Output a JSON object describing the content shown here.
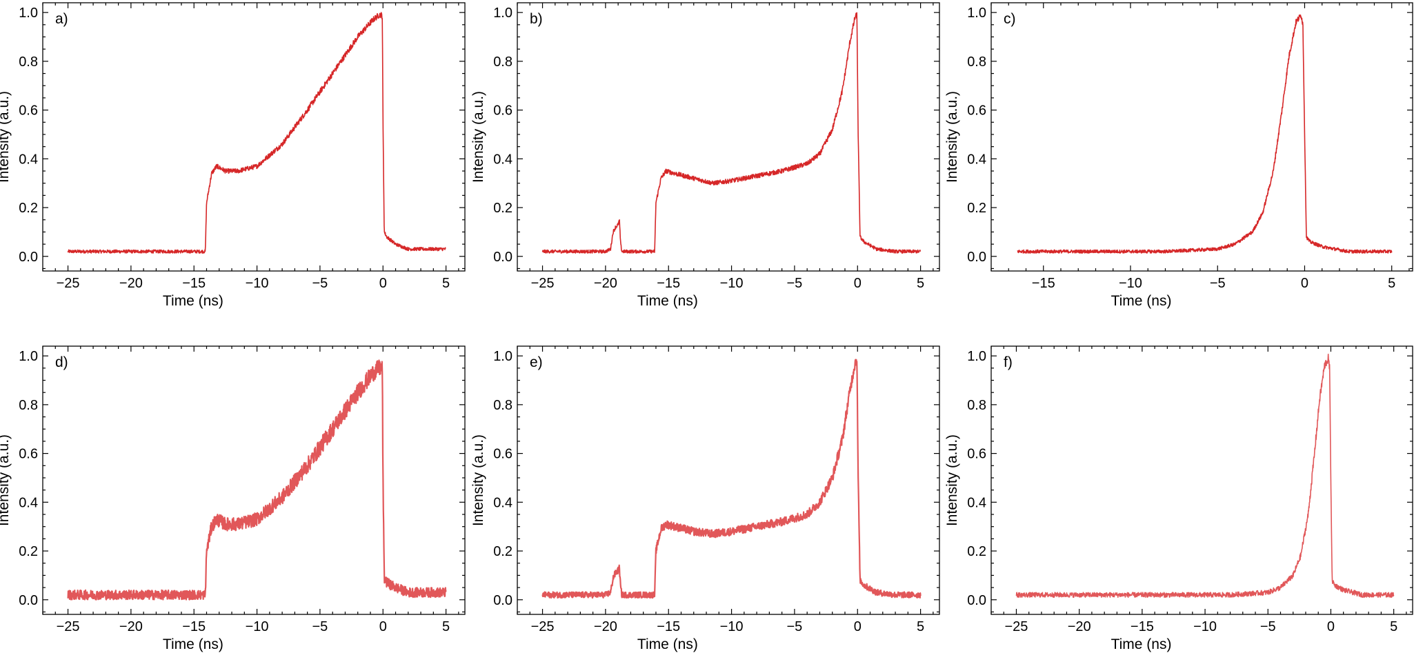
{
  "chart_data": [
    {
      "type": "line",
      "panel_label": "a)",
      "xlabel": "Time (ns)",
      "ylabel": "Intensity (a.u.)",
      "xlim": [
        -27,
        6.5
      ],
      "ylim": [
        -0.06,
        1.04
      ],
      "xticks": [
        -25,
        -20,
        -15,
        -10,
        -5,
        0,
        5
      ],
      "yticks": [
        0.0,
        0.2,
        0.4,
        0.6,
        0.8,
        1.0
      ],
      "xticklabels": [
        "−25",
        "−20",
        "−15",
        "−10",
        "−5",
        "0",
        "5"
      ],
      "yticklabels": [
        "0.0",
        "0.2",
        "0.4",
        "0.6",
        "0.8",
        "1.0"
      ],
      "grid": false,
      "color": "#d62728",
      "band": 0.012,
      "series": [
        {
          "x": [
            -25,
            -20,
            -15,
            -14.1,
            -14.0,
            -13.6,
            -13.2,
            -12.5,
            -11.5,
            -10.0,
            -8.0,
            -6.0,
            -4.0,
            -2.0,
            -0.8,
            -0.3,
            -0.1,
            -0.05,
            0.0,
            0.1,
            0.3,
            1.0,
            2.0,
            3.5,
            5.0
          ],
          "y": [
            0.02,
            0.02,
            0.02,
            0.02,
            0.22,
            0.34,
            0.37,
            0.35,
            0.35,
            0.37,
            0.46,
            0.6,
            0.75,
            0.9,
            0.97,
            0.99,
            0.99,
            0.98,
            0.55,
            0.1,
            0.08,
            0.05,
            0.03,
            0.03,
            0.03
          ]
        }
      ]
    },
    {
      "type": "line",
      "panel_label": "b)",
      "xlabel": "Time (ns)",
      "ylabel": "Intensity (a.u.)",
      "xlim": [
        -27,
        6.5
      ],
      "ylim": [
        -0.06,
        1.04
      ],
      "xticks": [
        -25,
        -20,
        -15,
        -10,
        -5,
        0,
        5
      ],
      "yticks": [
        0.0,
        0.2,
        0.4,
        0.6,
        0.8,
        1.0
      ],
      "xticklabels": [
        "−25",
        "−20",
        "−15",
        "−10",
        "−5",
        "0",
        "5"
      ],
      "yticklabels": [
        "0.0",
        "0.2",
        "0.4",
        "0.6",
        "0.8",
        "1.0"
      ],
      "grid": false,
      "color": "#d62728",
      "band": 0.012,
      "series": [
        {
          "x": [
            -25,
            -20,
            -19.6,
            -19.4,
            -19.2,
            -19.0,
            -18.9,
            -18.8,
            -18.7,
            -16.5,
            -16.1,
            -16.0,
            -15.6,
            -15.2,
            -14.5,
            -13.0,
            -11.5,
            -10.0,
            -8.0,
            -6.0,
            -4.0,
            -3.0,
            -2.0,
            -1.2,
            -0.6,
            -0.2,
            -0.05,
            0.05,
            0.2,
            0.5,
            1.5,
            3.0,
            5.0
          ],
          "y": [
            0.02,
            0.02,
            0.03,
            0.1,
            0.12,
            0.13,
            0.15,
            0.05,
            0.02,
            0.02,
            0.02,
            0.22,
            0.32,
            0.35,
            0.34,
            0.32,
            0.3,
            0.31,
            0.33,
            0.35,
            0.38,
            0.42,
            0.52,
            0.68,
            0.88,
            0.98,
            0.99,
            0.5,
            0.08,
            0.06,
            0.03,
            0.02,
            0.02
          ]
        }
      ]
    },
    {
      "type": "line",
      "panel_label": "c)",
      "xlabel": "Time (ns)",
      "ylabel": "Intensity (a.u.)",
      "xlim": [
        -18,
        6.2
      ],
      "ylim": [
        -0.06,
        1.04
      ],
      "xticks": [
        -15,
        -10,
        -5,
        0,
        5
      ],
      "yticks": [
        0.0,
        0.2,
        0.4,
        0.6,
        0.8,
        1.0
      ],
      "xticklabels": [
        "−15",
        "−10",
        "−5",
        "0",
        "5"
      ],
      "yticklabels": [
        "0.0",
        "0.2",
        "0.4",
        "0.6",
        "0.8",
        "1.0"
      ],
      "grid": false,
      "color": "#d62728",
      "band": 0.012,
      "series": [
        {
          "x": [
            -16.5,
            -12,
            -8,
            -5,
            -4.0,
            -3.0,
            -2.4,
            -1.8,
            -1.3,
            -0.9,
            -0.5,
            -0.2,
            -0.1,
            0.0,
            0.1,
            0.3,
            1.0,
            2.5,
            5.0
          ],
          "y": [
            0.02,
            0.02,
            0.02,
            0.03,
            0.05,
            0.1,
            0.18,
            0.35,
            0.6,
            0.82,
            0.96,
            0.99,
            0.95,
            0.5,
            0.08,
            0.06,
            0.04,
            0.02,
            0.02
          ]
        }
      ]
    },
    {
      "type": "line",
      "panel_label": "d)",
      "xlabel": "Time (ns)",
      "ylabel": "Intensity (a.u.)",
      "xlim": [
        -27,
        6.5
      ],
      "ylim": [
        -0.06,
        1.04
      ],
      "xticks": [
        -25,
        -20,
        -15,
        -10,
        -5,
        0,
        5
      ],
      "yticks": [
        0.0,
        0.2,
        0.4,
        0.6,
        0.8,
        1.0
      ],
      "xticklabels": [
        "−25",
        "−20",
        "−15",
        "−10",
        "−5",
        "0",
        "5"
      ],
      "yticklabels": [
        "0.0",
        "0.2",
        "0.4",
        "0.6",
        "0.8",
        "1.0"
      ],
      "grid": false,
      "color": "#e15759",
      "band": 0.035,
      "series": [
        {
          "x": [
            -25,
            -20,
            -15,
            -14.1,
            -14.0,
            -13.6,
            -13.2,
            -12.5,
            -11.5,
            -10.0,
            -8.0,
            -6.0,
            -4.0,
            -2.0,
            -0.8,
            -0.3,
            -0.1,
            -0.05,
            0.0,
            0.1,
            0.3,
            1.0,
            2.0,
            3.5,
            5.0
          ],
          "y": [
            0.02,
            0.02,
            0.02,
            0.02,
            0.2,
            0.3,
            0.33,
            0.31,
            0.31,
            0.33,
            0.42,
            0.55,
            0.7,
            0.85,
            0.93,
            0.95,
            0.95,
            0.94,
            0.5,
            0.09,
            0.07,
            0.05,
            0.03,
            0.03,
            0.03
          ]
        }
      ]
    },
    {
      "type": "line",
      "panel_label": "e)",
      "xlabel": "Time (ns)",
      "ylabel": "Intensity (a.u.)",
      "xlim": [
        -27,
        6.5
      ],
      "ylim": [
        -0.06,
        1.04
      ],
      "xticks": [
        -25,
        -20,
        -15,
        -10,
        -5,
        0,
        5
      ],
      "yticks": [
        0.0,
        0.2,
        0.4,
        0.6,
        0.8,
        1.0
      ],
      "xticklabels": [
        "−25",
        "−20",
        "−15",
        "−10",
        "−5",
        "0",
        "5"
      ],
      "yticklabels": [
        "0.0",
        "0.2",
        "0.4",
        "0.6",
        "0.8",
        "1.0"
      ],
      "grid": false,
      "color": "#e15759",
      "band": 0.022,
      "series": [
        {
          "x": [
            -25,
            -20,
            -19.6,
            -19.4,
            -19.2,
            -19.0,
            -18.9,
            -18.8,
            -18.7,
            -16.5,
            -16.1,
            -16.0,
            -15.6,
            -15.2,
            -14.5,
            -13.0,
            -11.5,
            -10.0,
            -8.0,
            -6.0,
            -4.0,
            -3.0,
            -2.0,
            -1.2,
            -0.6,
            -0.2,
            -0.05,
            0.05,
            0.2,
            0.5,
            1.5,
            3.0,
            5.0
          ],
          "y": [
            0.02,
            0.02,
            0.03,
            0.09,
            0.11,
            0.12,
            0.13,
            0.05,
            0.02,
            0.02,
            0.02,
            0.2,
            0.29,
            0.31,
            0.3,
            0.28,
            0.27,
            0.28,
            0.3,
            0.32,
            0.35,
            0.4,
            0.5,
            0.66,
            0.86,
            0.97,
            0.99,
            0.5,
            0.08,
            0.06,
            0.03,
            0.02,
            0.02
          ]
        }
      ]
    },
    {
      "type": "line",
      "panel_label": "f)",
      "xlabel": "Time (ns)",
      "ylabel": "Intensity (a.u.)",
      "xlim": [
        -27,
        6.5
      ],
      "ylim": [
        -0.06,
        1.04
      ],
      "xticks": [
        -25,
        -20,
        -15,
        -10,
        -5,
        0,
        5
      ],
      "yticks": [
        0.0,
        0.2,
        0.4,
        0.6,
        0.8,
        1.0
      ],
      "xticklabels": [
        "−25",
        "−20",
        "−15",
        "−10",
        "−5",
        "0",
        "5"
      ],
      "yticklabels": [
        "0.0",
        "0.2",
        "0.4",
        "0.6",
        "0.8",
        "1.0"
      ],
      "grid": false,
      "color": "#e15759",
      "band": 0.018,
      "series": [
        {
          "x": [
            -25,
            -15,
            -8,
            -5,
            -4.0,
            -3.0,
            -2.4,
            -1.8,
            -1.3,
            -0.9,
            -0.5,
            -0.2,
            -0.1,
            0.0,
            0.1,
            0.3,
            1.0,
            2.5,
            5.0
          ],
          "y": [
            0.02,
            0.02,
            0.02,
            0.03,
            0.05,
            0.1,
            0.18,
            0.35,
            0.6,
            0.82,
            0.96,
            0.99,
            0.95,
            0.5,
            0.08,
            0.06,
            0.04,
            0.02,
            0.02
          ]
        }
      ]
    }
  ]
}
